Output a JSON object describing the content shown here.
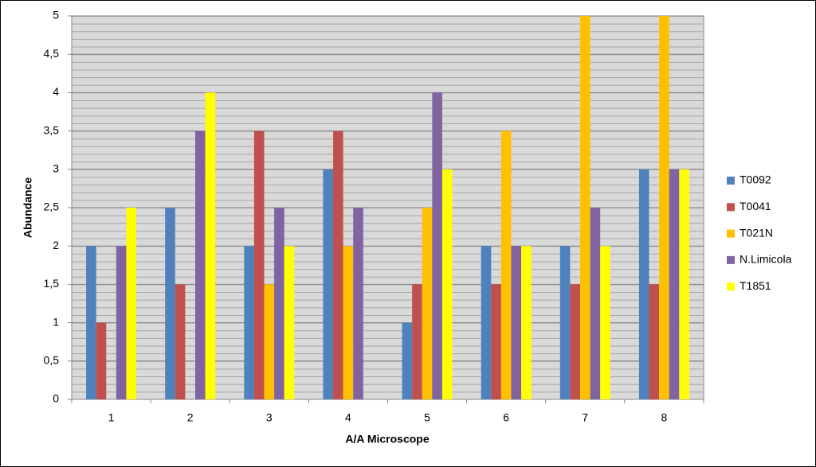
{
  "chart_data": {
    "type": "bar",
    "xlabel": "A/A Microscope",
    "ylabel": "Abundance",
    "categories": [
      "1",
      "2",
      "3",
      "4",
      "5",
      "6",
      "7",
      "8"
    ],
    "series": [
      {
        "name": "T0092",
        "color": "#4f81bd",
        "values": [
          2,
          2.5,
          2,
          3,
          1,
          2,
          2,
          3
        ]
      },
      {
        "name": "T0041",
        "color": "#c0504d",
        "values": [
          1,
          1.5,
          3.5,
          3.5,
          1.5,
          1.5,
          1.5,
          1.5
        ]
      },
      {
        "name": "T021N",
        "color": "#ffc000",
        "values": [
          0,
          0,
          1.5,
          2,
          2.5,
          3.5,
          5,
          5
        ]
      },
      {
        "name": "N.Limicola",
        "color": "#8064a2",
        "values": [
          2,
          3.5,
          2.5,
          2.5,
          4,
          2,
          2.5,
          3
        ]
      },
      {
        "name": "T1851",
        "color": "#ffff00",
        "values": [
          2.5,
          4,
          2,
          0,
          3,
          2,
          2,
          3
        ]
      }
    ],
    "ylim": [
      0,
      5
    ],
    "yticks": [
      0,
      {
        "value": 0.5,
        "label": "0,5"
      },
      1,
      {
        "value": 1.5,
        "label": "1,5"
      },
      2,
      {
        "value": 2.5,
        "label": "2,5"
      },
      3,
      {
        "value": 3.5,
        "label": "3,5"
      },
      4,
      {
        "value": 4.5,
        "label": "4,5"
      },
      5
    ],
    "grid": true,
    "legend": "right"
  }
}
